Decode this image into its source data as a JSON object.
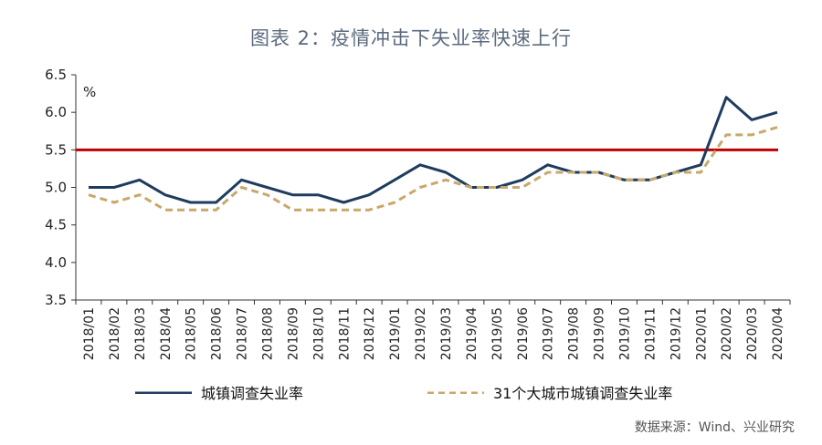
{
  "title": "图表 2：疫情冲击下失业率快速上行",
  "source": "数据来源：Wind、兴业研究",
  "chart_data": {
    "type": "line",
    "unit_label": "%",
    "categories": [
      "2018/01",
      "2018/02",
      "2018/03",
      "2018/04",
      "2018/05",
      "2018/06",
      "2018/07",
      "2018/08",
      "2018/09",
      "2018/10",
      "2018/11",
      "2018/12",
      "2019/01",
      "2019/02",
      "2019/03",
      "2019/04",
      "2019/05",
      "2019/06",
      "2019/07",
      "2019/08",
      "2019/09",
      "2019/10",
      "2019/11",
      "2019/12",
      "2020/01",
      "2020/02",
      "2020/03",
      "2020/04"
    ],
    "ylim": [
      3.5,
      6.5
    ],
    "yticks": [
      "3.5",
      "4.0",
      "4.5",
      "5.0",
      "5.5",
      "6.0",
      "6.5"
    ],
    "series": [
      {
        "name": "城镇调查失业率",
        "color": "#1f3c5f",
        "style": "solid",
        "values": [
          5.0,
          5.0,
          5.1,
          4.9,
          4.8,
          4.8,
          5.1,
          5.0,
          4.9,
          4.9,
          4.8,
          4.9,
          5.1,
          5.3,
          5.2,
          5.0,
          5.0,
          5.1,
          5.3,
          5.2,
          5.2,
          5.1,
          5.1,
          5.2,
          5.3,
          6.2,
          5.9,
          6.0
        ]
      },
      {
        "name": "31个大城市城镇调查失业率",
        "color": "#c8a86b",
        "style": "dashed",
        "values": [
          4.9,
          4.8,
          4.9,
          4.7,
          4.7,
          4.7,
          5.0,
          4.9,
          4.7,
          4.7,
          4.7,
          4.7,
          4.8,
          5.0,
          5.1,
          5.0,
          5.0,
          5.0,
          5.2,
          5.2,
          5.2,
          5.1,
          5.1,
          5.2,
          5.2,
          5.7,
          5.7,
          5.8
        ]
      }
    ],
    "reference_line": {
      "value": 5.5,
      "color": "#c00000"
    },
    "legend_position": "bottom",
    "grid": false
  }
}
